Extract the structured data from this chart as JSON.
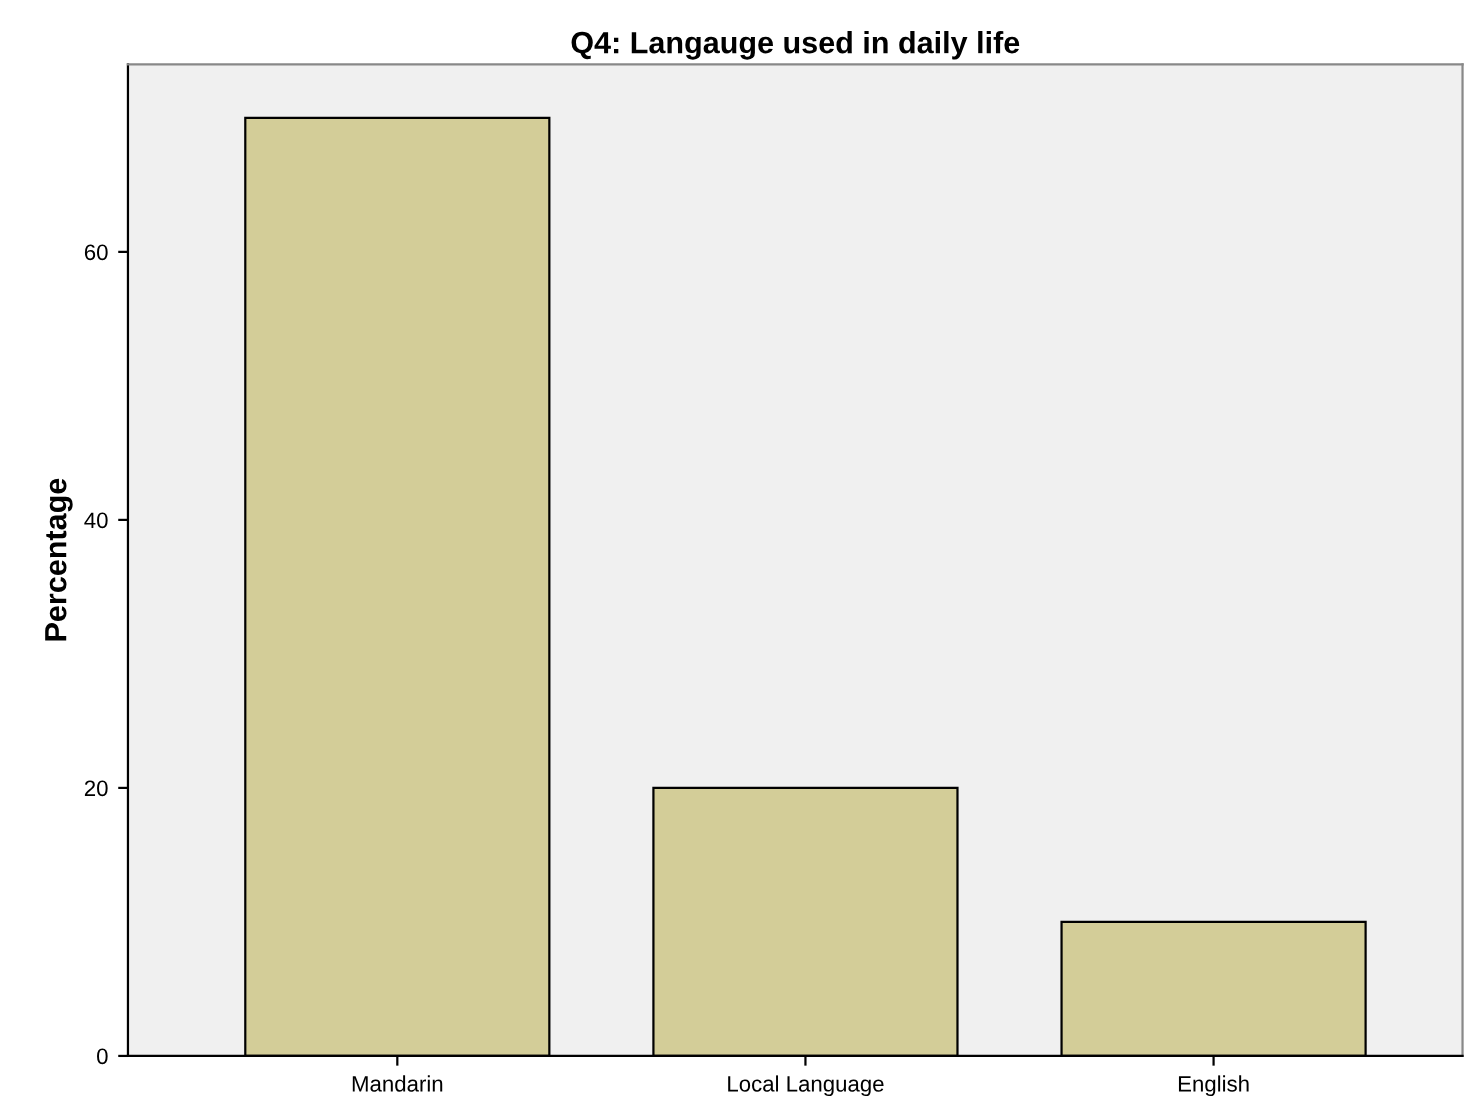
{
  "chart_data": {
    "type": "bar",
    "title": "Q4: Langauge used in daily life",
    "ylabel": "Percentage",
    "categories": [
      "Mandarin",
      "Local Language",
      "English"
    ],
    "values": [
      70,
      20,
      10
    ],
    "color": "#d3cd98",
    "ylim": [
      0,
      74
    ],
    "yticks": [
      0,
      20,
      40,
      60
    ],
    "grid": false,
    "legend": false
  }
}
